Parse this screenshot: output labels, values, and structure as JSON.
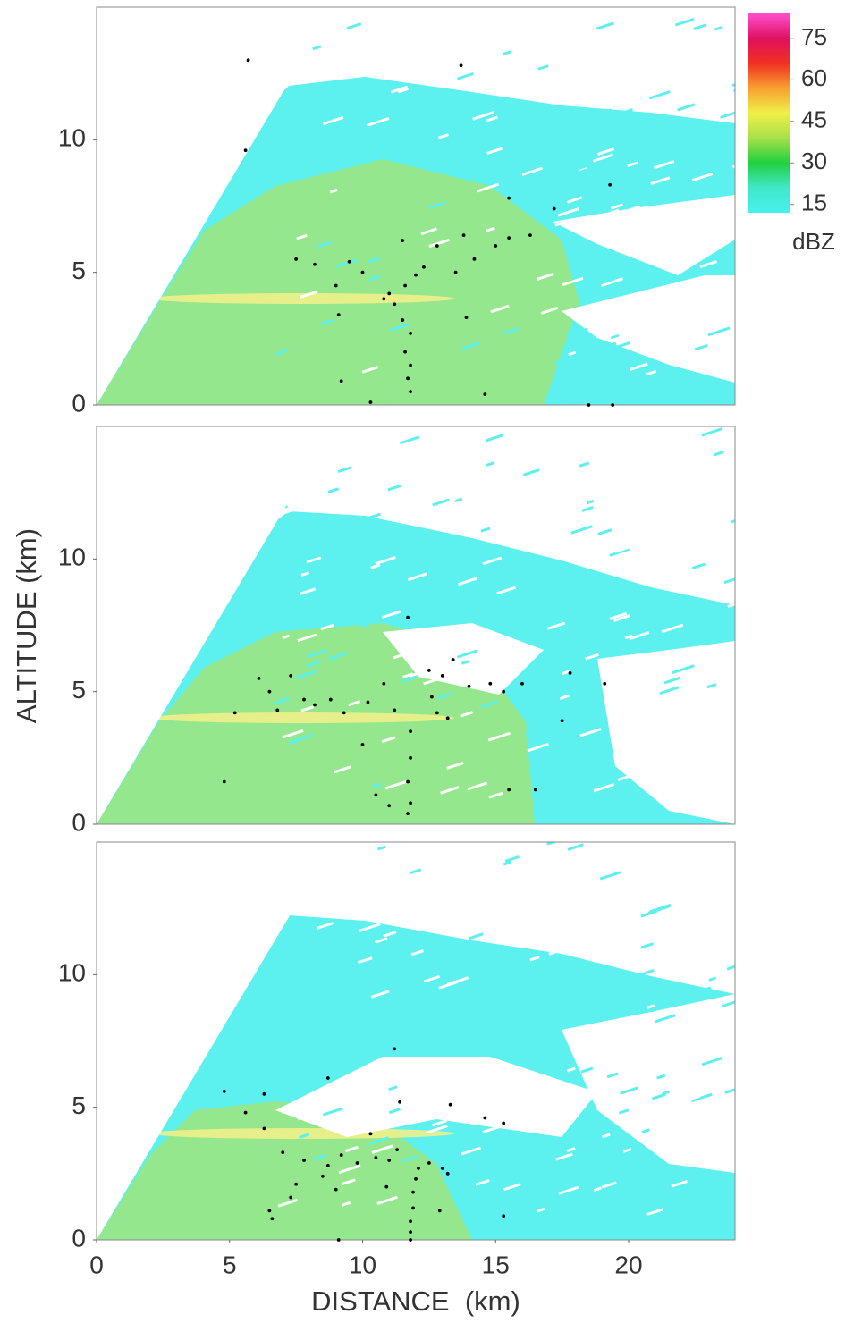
{
  "chart_data": [
    {
      "type": "scatter",
      "color": "#000000",
      "xlim": [
        0,
        24
      ],
      "ylim": [
        0,
        15
      ],
      "yticks": [
        0,
        5,
        10
      ],
      "colorbar": {
        "label": "dBZ",
        "lim": [
          12,
          84
        ],
        "ticks": [
          15,
          30,
          45,
          60,
          75
        ],
        "colors": [
          "#48f0f0",
          "#40e8c8",
          "#20d040",
          "#a8e048",
          "#f0f048",
          "#f8a030",
          "#f03020",
          "#e01060",
          "#ff50d0"
        ]
      },
      "x": [
        11.8,
        11.7,
        11.8,
        11.6,
        11.8,
        11.5,
        11.2,
        11.0,
        10.8,
        11.6,
        12.0,
        12.3,
        13.5,
        14.2,
        15.0,
        15.5,
        16.3,
        7.5,
        8.2,
        9.5,
        10.0,
        9.0,
        11.5,
        12.8,
        13.8,
        15.5,
        17.2,
        19.3,
        5.7,
        5.6,
        13.7,
        18.5,
        19.4,
        9.2,
        10.3,
        14.6,
        13.9,
        9.1
      ],
      "values": [
        0.5,
        1.0,
        1.5,
        2.0,
        2.7,
        3.2,
        3.8,
        4.2,
        4.0,
        4.5,
        4.9,
        5.2,
        5.0,
        5.5,
        6.0,
        6.3,
        6.4,
        5.5,
        5.3,
        5.4,
        5.0,
        4.5,
        6.2,
        6.0,
        6.4,
        7.8,
        7.4,
        8.3,
        13.0,
        9.6,
        12.8,
        0.0,
        0.0,
        0.9,
        0.1,
        0.4,
        3.3,
        3.4
      ]
    },
    {
      "type": "scatter",
      "color": "#000000",
      "xlim": [
        0,
        24
      ],
      "ylim": [
        0,
        15
      ],
      "yticks": [
        0,
        5,
        10
      ],
      "y_label": "ALTITUDE (km)",
      "x": [
        6.1,
        6.5,
        6.8,
        7.3,
        7.8,
        8.2,
        8.8,
        9.3,
        5.2,
        4.8,
        10.2,
        10.8,
        11.2,
        11.8,
        11.8,
        11.7,
        11.8,
        11.7,
        12.8,
        13.2,
        12.6,
        13.0,
        13.4,
        14.0,
        14.8,
        15.3,
        16.0,
        17.8,
        19.1,
        17.5,
        10.5,
        11.0,
        15.5,
        16.5,
        11.7,
        12.5,
        10.0
      ],
      "values": [
        5.5,
        5.0,
        4.3,
        5.6,
        4.7,
        4.5,
        4.7,
        4.2,
        4.2,
        1.6,
        4.6,
        5.3,
        4.3,
        3.5,
        2.5,
        1.6,
        0.8,
        0.4,
        4.2,
        4.0,
        4.8,
        5.6,
        6.2,
        5.2,
        5.3,
        5.0,
        5.3,
        5.7,
        5.3,
        3.9,
        1.1,
        0.7,
        1.3,
        1.3,
        7.8,
        5.8,
        3.0
      ]
    },
    {
      "type": "scatter",
      "color": "#000000",
      "xlim": [
        0,
        24
      ],
      "ylim": [
        0,
        15
      ],
      "yticks": [
        0,
        5,
        10
      ],
      "xticks": [
        0,
        5,
        10,
        15,
        20
      ],
      "x_label": "DISTANCE  (km)",
      "x": [
        11.8,
        11.8,
        11.8,
        11.9,
        11.9,
        12.0,
        12.1,
        12.5,
        13.0,
        13.2,
        11.0,
        10.5,
        9.8,
        9.2,
        8.7,
        8.5,
        7.8,
        7.5,
        6.5,
        6.6,
        7.3,
        9.0,
        11.2,
        10.3,
        13.3,
        14.6,
        15.3,
        15.3,
        12.9,
        9.1,
        4.8,
        5.6,
        6.3,
        8.7,
        10.9,
        11.3,
        11.4,
        7.0,
        6.3
      ],
      "values": [
        0.0,
        0.3,
        0.7,
        1.2,
        1.8,
        2.3,
        2.7,
        2.9,
        2.7,
        2.5,
        3.0,
        3.1,
        2.9,
        3.2,
        2.8,
        2.4,
        3.0,
        2.1,
        1.1,
        0.8,
        1.6,
        1.9,
        7.2,
        4.0,
        5.1,
        4.6,
        4.4,
        0.9,
        1.1,
        0.0,
        5.6,
        4.8,
        5.5,
        6.1,
        2.0,
        3.4,
        5.2,
        3.3,
        4.2
      ]
    }
  ]
}
